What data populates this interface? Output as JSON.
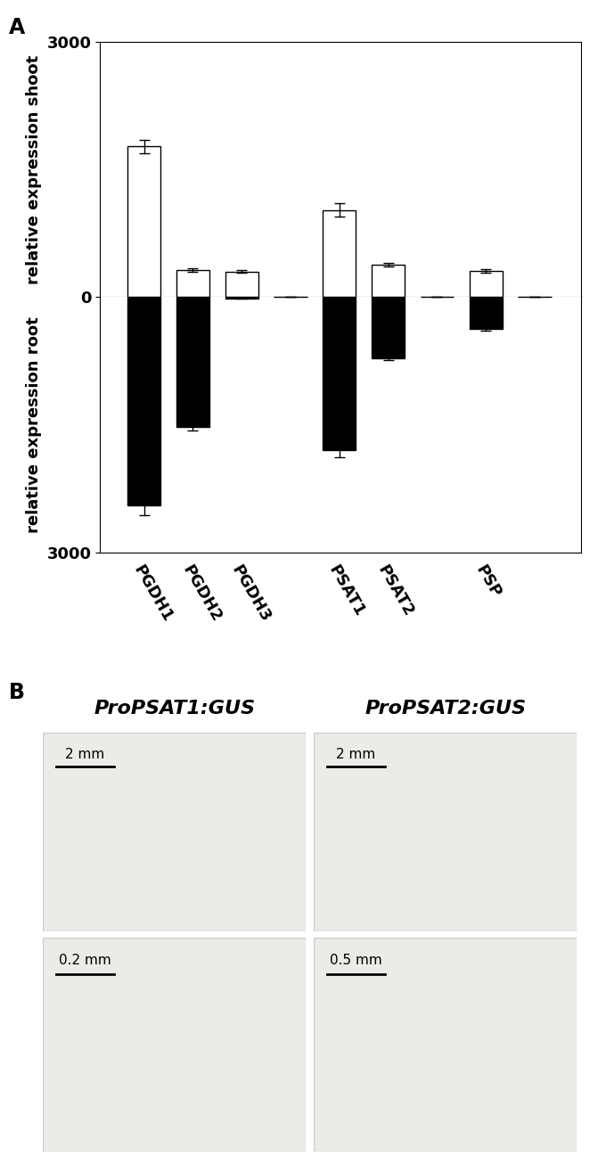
{
  "chart_data": [
    {
      "type": "bar",
      "ylabel": "relative expression shoot",
      "categories": [
        "PGDH1",
        "PGDH2",
        "PGDH3",
        null,
        "PSAT1",
        "PSAT2",
        null,
        "PSP",
        null
      ],
      "values": [
        1770,
        315,
        295,
        0,
        1020,
        380,
        0,
        305,
        0
      ],
      "errors": [
        80,
        20,
        15,
        0,
        80,
        20,
        0,
        20,
        0
      ],
      "color": "#ffffff",
      "ylim": [
        0,
        3000
      ],
      "yticks": [
        0,
        3000
      ],
      "tick_labels": "y"
    },
    {
      "type": "bar",
      "ylabel": "relative expression root",
      "categories": [
        "PGDH1",
        "PGDH2",
        "PGDH3",
        null,
        "PSAT1",
        "PSAT2",
        null,
        "PSP",
        null
      ],
      "values": [
        2450,
        1530,
        20,
        0,
        1800,
        720,
        0,
        375,
        0
      ],
      "errors": [
        115,
        40,
        5,
        0,
        85,
        25,
        0,
        20,
        0
      ],
      "color": "#000000",
      "ylim": [
        3000,
        0
      ],
      "yticks": [
        3000
      ]
    }
  ],
  "panel_labels": [
    "A",
    "B"
  ],
  "images": [
    {
      "title": "ProPSAT1:GUS",
      "scale_bars": [
        "2 mm",
        "0.2 mm"
      ]
    },
    {
      "title": "ProPSAT2:GUS",
      "scale_bars": [
        "2 mm",
        "0.5 mm"
      ]
    }
  ]
}
